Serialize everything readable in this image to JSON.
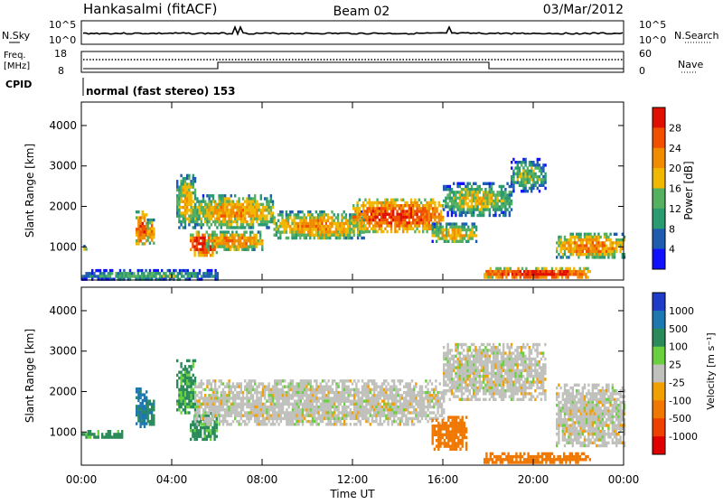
{
  "header": {
    "station": "Hankasalmi (fitACF)",
    "beam": "Beam 02",
    "date": "03/Mar/2012"
  },
  "strip": {
    "nsky_label": "N.Sky",
    "nsky_ticks": [
      "10^5",
      "10^0"
    ],
    "nsearch_label": "N.Search",
    "nsearch_ticks": [
      "10^5",
      "10^0"
    ],
    "freq_label": "Freq.",
    "freq_unit": "[MHz]",
    "freq_ticks": [
      "18",
      "8"
    ],
    "nave_label": "Nave",
    "nave_ticks": [
      "60",
      "0"
    ],
    "cpid_label": "CPID",
    "cpid_value": "normal (fast stereo) 153"
  },
  "colors": {
    "power": [
      "#1010ff",
      "#1e5cb0",
      "#2a9a70",
      "#55b060",
      "#f0b800",
      "#f08c00",
      "#f05000",
      "#e01000"
    ],
    "velocity": [
      "#1e3cc8",
      "#1e78b0",
      "#2a8a5a",
      "#6ad040",
      "#c0c0bc",
      "#f0a000",
      "#f07800",
      "#f04000",
      "#e00000"
    ]
  },
  "chart_data": [
    {
      "type": "heatmap",
      "panel": "power",
      "ylabel": "Slant Range [km]",
      "xlabel": "Time UT",
      "x_ticks": [
        "00:00",
        "04:00",
        "08:00",
        "12:00",
        "16:00",
        "20:00",
        "00:00"
      ],
      "x_range_hours": [
        0,
        24
      ],
      "y_ticks": [
        1000,
        2000,
        3000,
        4000
      ],
      "ylim": [
        180,
        4580
      ],
      "colorbar_title": "Power [dB]",
      "colorbar_ticks": [
        4,
        8,
        12,
        16,
        20,
        24,
        28
      ],
      "colorbar_range": [
        0,
        32
      ],
      "echo_regions": [
        {
          "t0": 0.0,
          "t1": 0.2,
          "r0": 920,
          "r1": 1050,
          "v": 12
        },
        {
          "t0": 2.4,
          "t1": 2.9,
          "r0": 1050,
          "r1": 1900,
          "v": 22
        },
        {
          "t0": 2.9,
          "t1": 3.2,
          "r0": 1100,
          "r1": 1700,
          "v": 18
        },
        {
          "t0": 4.2,
          "t1": 5.0,
          "r0": 1500,
          "r1": 2800,
          "v": 14
        },
        {
          "t0": 4.8,
          "t1": 6.0,
          "r0": 800,
          "r1": 1400,
          "v": 24
        },
        {
          "t0": 5.5,
          "t1": 8.0,
          "r0": 950,
          "r1": 1400,
          "v": 18
        },
        {
          "t0": 5.0,
          "t1": 8.5,
          "r0": 1500,
          "r1": 2300,
          "v": 16
        },
        {
          "t0": 8.5,
          "t1": 12.5,
          "r0": 1200,
          "r1": 1900,
          "v": 16
        },
        {
          "t0": 12.0,
          "t1": 16.0,
          "r0": 1400,
          "r1": 2200,
          "v": 22
        },
        {
          "t0": 15.5,
          "t1": 17.5,
          "r0": 1100,
          "r1": 1600,
          "v": 14
        },
        {
          "t0": 16.0,
          "t1": 19.0,
          "r0": 1800,
          "r1": 2600,
          "v": 12
        },
        {
          "t0": 19.0,
          "t1": 20.5,
          "r0": 2400,
          "r1": 3200,
          "v": 10
        },
        {
          "t0": 17.8,
          "t1": 22.5,
          "r0": 250,
          "r1": 500,
          "v": 24
        },
        {
          "t0": 21.0,
          "t1": 24.0,
          "r0": 750,
          "r1": 1350,
          "v": 18
        },
        {
          "t0": 0.0,
          "t1": 6.0,
          "r0": 200,
          "r1": 450,
          "v": 8
        }
      ]
    },
    {
      "type": "heatmap",
      "panel": "velocity",
      "ylabel": "Slant Range [km]",
      "xlabel": "Time UT",
      "x_ticks": [
        "00:00",
        "04:00",
        "08:00",
        "12:00",
        "16:00",
        "20:00",
        "00:00"
      ],
      "x_range_hours": [
        0,
        24
      ],
      "y_ticks": [
        1000,
        2000,
        3000,
        4000
      ],
      "ylim": [
        180,
        4580
      ],
      "colorbar_title": "Velocity [m s⁻¹]",
      "colorbar_ticks": [
        1000,
        500,
        100,
        25,
        -25,
        -100,
        -500,
        -1000
      ],
      "echo_regions": [
        {
          "t0": 0.0,
          "t1": 1.8,
          "r0": 850,
          "r1": 1050,
          "v": 150
        },
        {
          "t0": 2.4,
          "t1": 2.9,
          "r0": 1100,
          "r1": 2100,
          "v": 700
        },
        {
          "t0": 2.9,
          "t1": 3.2,
          "r0": 1150,
          "r1": 1800,
          "v": 400
        },
        {
          "t0": 4.2,
          "t1": 5.0,
          "r0": 1500,
          "r1": 2800,
          "v": 120
        },
        {
          "t0": 4.8,
          "t1": 6.0,
          "r0": 800,
          "r1": 1500,
          "v": 150
        },
        {
          "t0": 5.0,
          "t1": 16.0,
          "r0": 1200,
          "r1": 2300,
          "v": 0
        },
        {
          "t0": 15.5,
          "t1": 17.0,
          "r0": 600,
          "r1": 1400,
          "v": -300
        },
        {
          "t0": 16.0,
          "t1": 20.5,
          "r0": 1800,
          "r1": 3200,
          "v": 0
        },
        {
          "t0": 17.8,
          "t1": 22.5,
          "r0": 250,
          "r1": 500,
          "v": -200
        },
        {
          "t0": 21.0,
          "t1": 24.0,
          "r0": 650,
          "r1": 2200,
          "v": 0
        }
      ]
    }
  ]
}
